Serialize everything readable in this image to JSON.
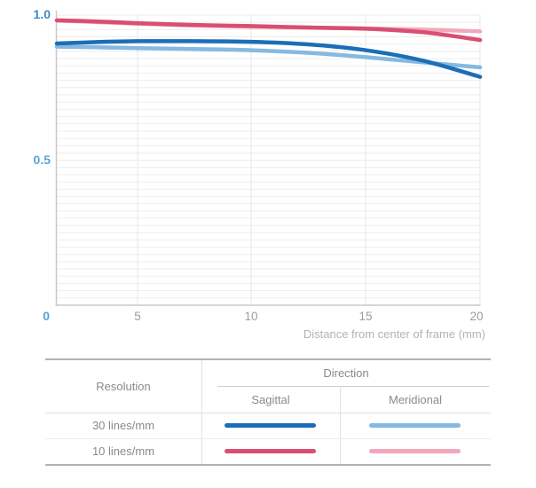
{
  "page": {
    "background": "#ffffff"
  },
  "chart_data": {
    "type": "line",
    "title": "",
    "xlabel": "Distance from center of frame (mm)",
    "ylabel": "",
    "xlim": [
      0,
      20
    ],
    "ylim": [
      0,
      1.0
    ],
    "x_tick_labels": [
      "0",
      "5",
      "10",
      "15",
      "20"
    ],
    "y_tick_labels": [
      "1.0",
      "0.5",
      "0"
    ],
    "grid": true,
    "legend_position": "bottom-table",
    "x": [
      0,
      2.5,
      5,
      7.5,
      10,
      12.5,
      15,
      17.5,
      20
    ],
    "series": [
      {
        "name": "30 lines/mm Sagittal",
        "color": "#1b6eb7",
        "values": [
          0.902,
          0.907,
          0.91,
          0.91,
          0.908,
          0.899,
          0.879,
          0.843,
          0.787
        ]
      },
      {
        "name": "30 lines/mm Meridional",
        "color": "#85b9e1",
        "values": [
          0.891,
          0.889,
          0.886,
          0.883,
          0.879,
          0.87,
          0.855,
          0.837,
          0.82
        ]
      },
      {
        "name": "10 lines/mm Sagittal",
        "color": "#d94e72",
        "values": [
          0.982,
          0.978,
          0.972,
          0.966,
          0.962,
          0.957,
          0.953,
          0.941,
          0.914
        ]
      },
      {
        "name": "10 lines/mm Meridional",
        "color": "#f2a7ba",
        "values": [
          0.981,
          0.976,
          0.97,
          0.964,
          0.96,
          0.957,
          0.954,
          0.95,
          0.944
        ]
      }
    ]
  },
  "colors": {
    "y_label_strong": "#3a8aca",
    "y_label": "#5aa2d6",
    "tick_gray": "#9c9c9c",
    "title_gray": "#b3b3b3",
    "axis_line": "#c9c9c9",
    "grid_minor": "#ededed",
    "grid_vertical": "#e7e7e7"
  },
  "legend_table": {
    "resolution_header": "Resolution",
    "direction_header": "Direction",
    "columns": [
      "Sagittal",
      "Meridional"
    ],
    "rows": [
      {
        "label": "30 lines/mm",
        "sagittal_color": "#1b6eb7",
        "meridional_color": "#85b9e1"
      },
      {
        "label": "10 lines/mm",
        "sagittal_color": "#d94e72",
        "meridional_color": "#f2a7ba"
      }
    ]
  }
}
